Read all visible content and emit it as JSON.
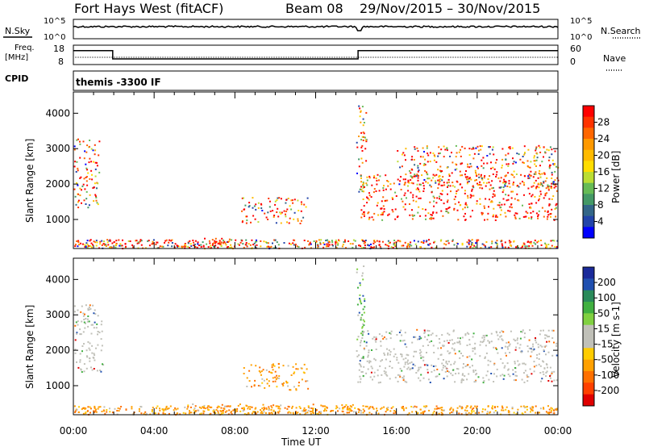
{
  "header": {
    "station": "Fort Hays West (fitACF)",
    "beam": "Beam 08",
    "daterange": "29/Nov/2015 – 30/Nov/2015"
  },
  "panel_labels": {
    "nsky": "N.Sky",
    "nsearch": "N.Search",
    "freq_line1": "Freq.",
    "freq_line2": "[MHz]",
    "nave": "Nave",
    "cpid": "CPID",
    "cpid_value": "themis -3300 IF"
  },
  "noise_axis": {
    "left_ticks": [
      "10^5",
      "10^0"
    ],
    "right_ticks": [
      "10^5",
      "10^0"
    ]
  },
  "freq_axis": {
    "left_ticks": [
      "18",
      "8"
    ],
    "right_ticks": [
      "60",
      "0"
    ]
  },
  "colorbars": {
    "power": {
      "label": "Power [dB]",
      "ticks": [
        "28",
        "24",
        "20",
        "16",
        "12",
        "8",
        "4"
      ],
      "colors": [
        "#ff0000",
        "#ff3300",
        "#ff6600",
        "#ff9900",
        "#ffbb00",
        "#ffdd00",
        "#bbdd33",
        "#66bb55",
        "#449966",
        "#336688",
        "#2244aa",
        "#0000ff"
      ]
    },
    "velocity": {
      "label": "Velocity [m s-1]",
      "ticks": [
        "200",
        "100",
        "50",
        "15",
        "-15",
        "-50",
        "-100",
        "-200"
      ],
      "colors": [
        "#1a2a9a",
        "#2050b0",
        "#2a8a5a",
        "#40b040",
        "#80d040",
        "#c0c0b8",
        "#c0c0b8",
        "#ffcc00",
        "#ffa000",
        "#ff7000",
        "#ff4000",
        "#e00000"
      ]
    }
  },
  "chart_data": {
    "type": "heatmap",
    "x_axis": {
      "label": "Time UT",
      "ticks": [
        "00:00",
        "04:00",
        "08:00",
        "12:00",
        "16:00",
        "20:00",
        "00:00"
      ],
      "range_hours": [
        0,
        24
      ]
    },
    "y_axis": {
      "label": "Slant Range [km]",
      "ticks": [
        1000,
        2000,
        3000,
        4000
      ],
      "range": [
        180,
        4600
      ]
    },
    "frequency_trace_mhz": [
      {
        "start": 0,
        "end": 1.95,
        "value": 15.2
      },
      {
        "start": 1.95,
        "end": 14.1,
        "value": 10.9
      },
      {
        "start": 14.1,
        "end": 24,
        "value": 15.2
      }
    ],
    "power_regions": [
      {
        "t0": 0.0,
        "t1": 1.3,
        "r0": 1350,
        "r1": 3300,
        "level": "mixed"
      },
      {
        "t0": 8.3,
        "t1": 11.6,
        "r0": 900,
        "r1": 1650,
        "level": "mixed"
      },
      {
        "t0": 5.5,
        "t1": 7.8,
        "r0": 250,
        "r1": 500,
        "level": "high"
      },
      {
        "t0": 14.0,
        "t1": 14.5,
        "r0": 1800,
        "r1": 4300,
        "level": "mixed"
      },
      {
        "t0": 14.2,
        "t1": 24,
        "r0": 1000,
        "r1": 2300,
        "level": "high"
      },
      {
        "t0": 16.0,
        "t1": 24,
        "r0": 1900,
        "r1": 3100,
        "level": "mixed"
      }
    ],
    "velocity_regions": [
      {
        "t0": 0.0,
        "t1": 1.5,
        "r0": 1400,
        "r1": 3300,
        "level": "low"
      },
      {
        "t0": 8.4,
        "t1": 11.6,
        "r0": 900,
        "r1": 1650,
        "level": "negative"
      },
      {
        "t0": 5.5,
        "t1": 14.0,
        "r0": 250,
        "r1": 500,
        "level": "negative"
      },
      {
        "t0": 14.0,
        "t1": 24,
        "r0": 1100,
        "r1": 2600,
        "level": "low"
      },
      {
        "t0": 14.0,
        "t1": 14.4,
        "r0": 1700,
        "r1": 4400,
        "level": "mixed"
      }
    ]
  }
}
